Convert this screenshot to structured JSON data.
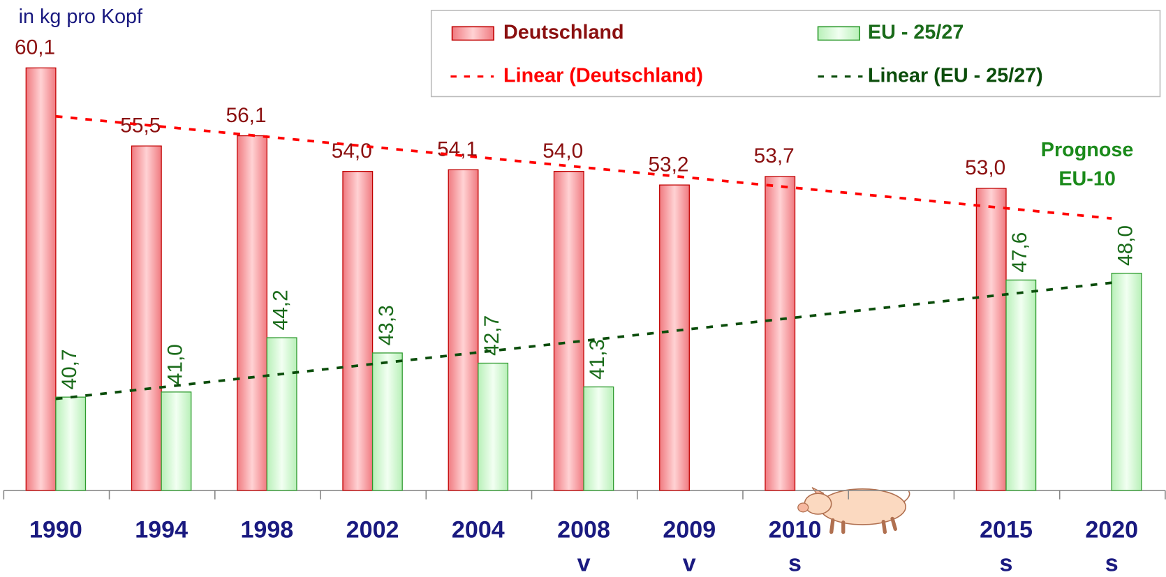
{
  "chart_data": {
    "type": "bar",
    "y_label": "in kg pro Kopf",
    "annotation": [
      "Prognose",
      "EU-10"
    ],
    "categories": [
      "1990",
      "1994",
      "1998",
      "2002",
      "2004",
      "2008",
      "2009",
      "2010",
      null,
      "2015",
      "2020"
    ],
    "sublabels": [
      null,
      null,
      null,
      null,
      null,
      "v",
      "v",
      "s",
      null,
      "s",
      "s"
    ],
    "series": [
      {
        "name": "Deutschland",
        "color": "#c00000",
        "label_color": "#8b1010",
        "trendline": "Linear (Deutschland)",
        "trend_color": "#ff0000",
        "values": [
          60.1,
          55.5,
          56.1,
          54.0,
          54.1,
          54.0,
          53.2,
          53.7,
          null,
          53.0,
          null
        ],
        "value_labels": [
          "60,1",
          "55,5",
          "56,1",
          "54,0",
          "54,1",
          "54,0",
          "53,2",
          "53,7",
          null,
          "53,0",
          null
        ]
      },
      {
        "name": "EU - 25/27",
        "color": "#2e9a2e",
        "label_color": "#1a6b1a",
        "trendline": "Linear (EU - 25/27)",
        "trend_color": "#0b4d0b",
        "values": [
          40.7,
          41.0,
          44.2,
          43.3,
          42.7,
          41.3,
          null,
          null,
          null,
          47.6,
          48.0
        ],
        "value_labels": [
          "40,7",
          "41,0",
          "44,2",
          "43,3",
          "42,7",
          "41,3",
          null,
          null,
          null,
          "47,6",
          "48,0"
        ]
      }
    ],
    "ylim": [
      35.2,
      64.1
    ],
    "legend": "top-right"
  }
}
